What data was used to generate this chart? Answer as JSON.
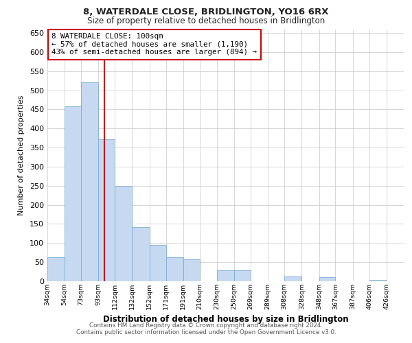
{
  "title": "8, WATERDALE CLOSE, BRIDLINGTON, YO16 6RX",
  "subtitle": "Size of property relative to detached houses in Bridlington",
  "xlabel": "Distribution of detached houses by size in Bridlington",
  "ylabel": "Number of detached properties",
  "bar_color": "#c6d9f1",
  "bar_edge_color": "#7aafd4",
  "background_color": "#ffffff",
  "grid_color": "#d0d0d0",
  "marker_value": 100,
  "marker_color": "#cc0000",
  "annotation_line1": "8 WATERDALE CLOSE: 100sqm",
  "annotation_line2": "← 57% of detached houses are smaller (1,190)",
  "annotation_line3": "43% of semi-detached houses are larger (894) →",
  "bin_labels": [
    "34sqm",
    "54sqm",
    "73sqm",
    "93sqm",
    "112sqm",
    "132sqm",
    "152sqm",
    "171sqm",
    "191sqm",
    "210sqm",
    "230sqm",
    "250sqm",
    "269sqm",
    "289sqm",
    "308sqm",
    "328sqm",
    "348sqm",
    "367sqm",
    "387sqm",
    "406sqm",
    "426sqm"
  ],
  "bin_edges": [
    34,
    54,
    73,
    93,
    112,
    132,
    152,
    171,
    191,
    210,
    230,
    250,
    269,
    289,
    308,
    328,
    348,
    367,
    387,
    406,
    426
  ],
  "bar_heights": [
    62,
    458,
    521,
    372,
    250,
    142,
    95,
    62,
    58,
    0,
    28,
    28,
    0,
    0,
    13,
    0,
    10,
    0,
    0,
    4,
    0
  ],
  "ylim": [
    0,
    660
  ],
  "yticks": [
    0,
    50,
    100,
    150,
    200,
    250,
    300,
    350,
    400,
    450,
    500,
    550,
    600,
    650
  ],
  "footnote1": "Contains HM Land Registry data © Crown copyright and database right 2024.",
  "footnote2": "Contains public sector information licensed under the Open Government Licence v3.0."
}
